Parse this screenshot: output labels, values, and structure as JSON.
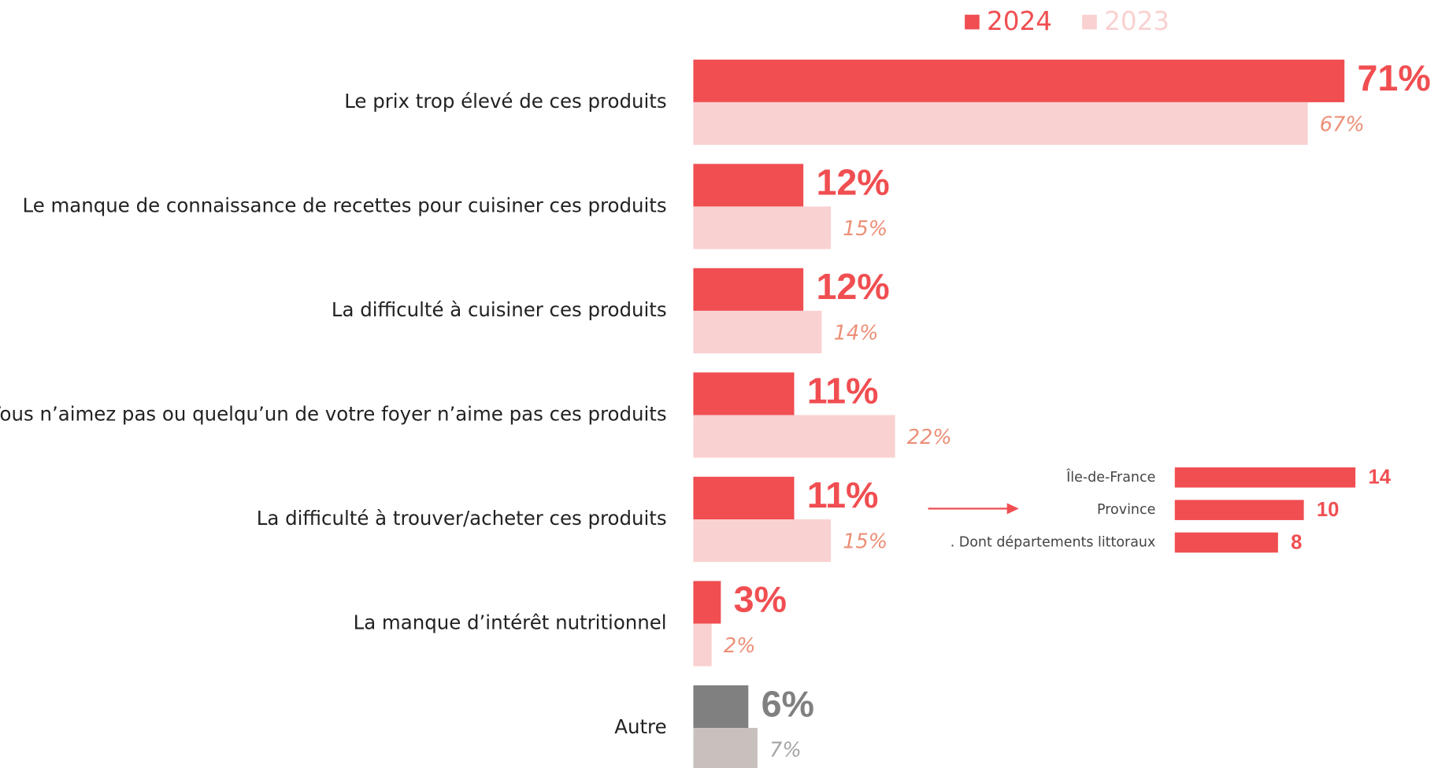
{
  "chart_data": [
    {
      "type": "hbar",
      "categories": [
        "Le prix trop élevé de ces produits",
        "Le manque de connaissance de recettes pour cuisiner ces produits",
        "La difficulté à cuisiner ces produits",
        "Vous n’aimez pas ou quelqu’un de votre foyer n’aime pas ces produits",
        "La difficulté à trouver/acheter ces produits",
        "La manque d’intérêt nutritionnel",
        "Autre"
      ],
      "series": [
        {
          "name": "2024",
          "color": "#f04e51",
          "colors": [
            "#f04e51",
            "#f04e51",
            "#f04e51",
            "#f04e51",
            "#f04e51",
            "#f04e51",
            "#808080"
          ],
          "label_colors": [
            "#f04e51",
            "#f04e51",
            "#f04e51",
            "#f04e51",
            "#f04e51",
            "#f04e51",
            "#808080"
          ],
          "values": [
            71,
            12,
            12,
            11,
            11,
            3,
            6
          ],
          "value_labels": [
            "71%",
            "12%",
            "12%",
            "11%",
            "11%",
            "3%",
            "6%"
          ]
        },
        {
          "name": "2023",
          "color": "#f9d1d1",
          "colors": [
            "#f9d1d1",
            "#f9d1d1",
            "#f9d1d1",
            "#f9d1d1",
            "#f9d1d1",
            "#f9d1d1",
            "#c7c0bc"
          ],
          "label_colors": [
            "#ec8f78",
            "#ec8f78",
            "#ec8f78",
            "#ec8f78",
            "#ec8f78",
            "#ec8f78",
            "#a6a6a6"
          ],
          "values": [
            67,
            15,
            14,
            22,
            15,
            2,
            7
          ],
          "value_labels": [
            "67%",
            "15%",
            "14%",
            "22%",
            "15%",
            "2%",
            "7%"
          ]
        }
      ],
      "xlim": [
        0,
        80
      ],
      "legend": "top"
    },
    {
      "type": "hbar-inset",
      "categories": [
        "Île-de-France",
        "Province",
        ". Dont départements littoraux"
      ],
      "values": [
        14,
        10,
        8
      ],
      "color": "#f04e51",
      "xlim": [
        0,
        20
      ]
    }
  ]
}
